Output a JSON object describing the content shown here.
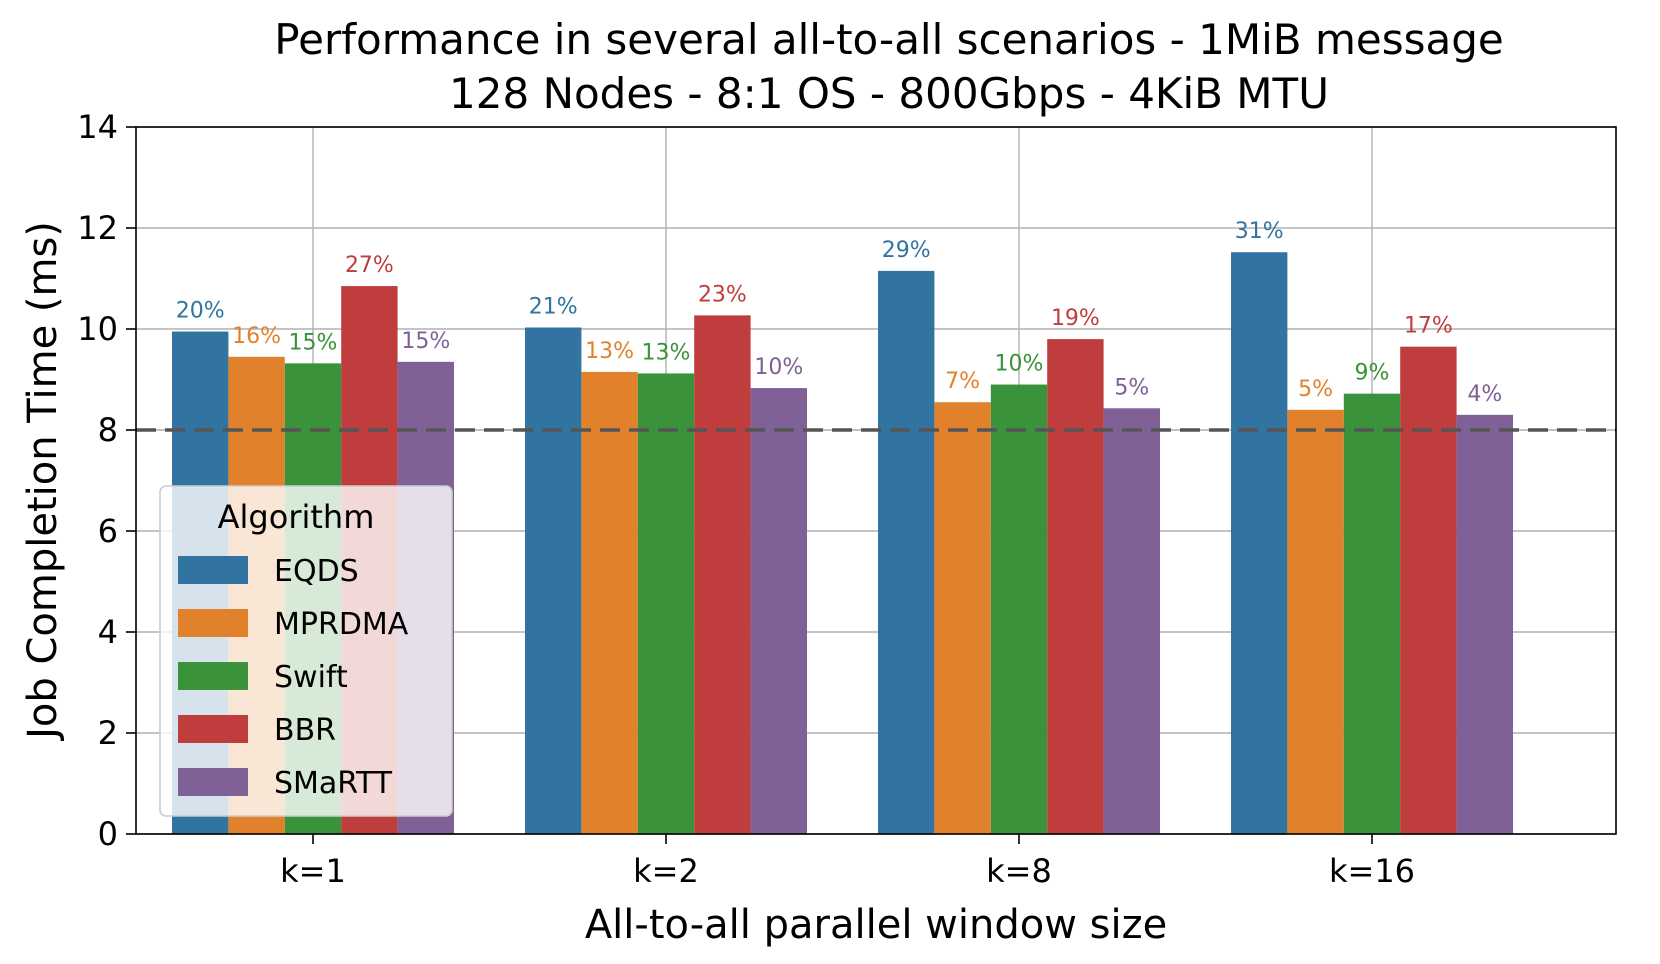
{
  "chart_data": {
    "type": "bar",
    "title": "Performance in several all-to-all scenarios - 1MiB message",
    "subtitle": "128 Nodes - 8:1 OS - 800Gbps - 4KiB MTU",
    "xlabel": "All-to-all parallel window size",
    "ylabel": "Job Completion Time (ms)",
    "ylim": [
      0,
      14
    ],
    "yticks": [
      0,
      2,
      4,
      6,
      8,
      10,
      12,
      14
    ],
    "grid": true,
    "reference_line": {
      "y": 8,
      "style": "dashed",
      "color": "#555555"
    },
    "categories": [
      "k=1",
      "k=2",
      "k=8",
      "k=16"
    ],
    "series": [
      {
        "name": "EQDS",
        "color": "#3274a1",
        "values": [
          9.95,
          10.03,
          11.15,
          11.52
        ],
        "labels": [
          "20%",
          "21%",
          "29%",
          "31%"
        ]
      },
      {
        "name": "MPRDMA",
        "color": "#e1812c",
        "values": [
          9.45,
          9.15,
          8.55,
          8.4
        ],
        "labels": [
          "16%",
          "13%",
          "7%",
          "5%"
        ]
      },
      {
        "name": "Swift",
        "color": "#3a923a",
        "values": [
          9.32,
          9.12,
          8.9,
          8.72
        ],
        "labels": [
          "15%",
          "13%",
          "10%",
          "9%"
        ]
      },
      {
        "name": "BBR",
        "color": "#c03d3e",
        "values": [
          10.85,
          10.27,
          9.8,
          9.65
        ],
        "labels": [
          "27%",
          "23%",
          "19%",
          "17%"
        ]
      },
      {
        "name": "SMaRTT",
        "color": "#7f6097",
        "values": [
          9.35,
          8.83,
          8.43,
          8.3
        ],
        "labels": [
          "15%",
          "10%",
          "5%",
          "4%"
        ]
      }
    ],
    "legend": {
      "title": "Algorithm",
      "position": "lower-left"
    }
  }
}
